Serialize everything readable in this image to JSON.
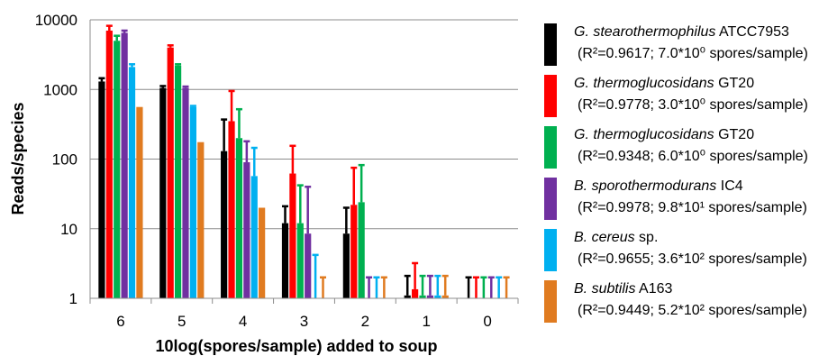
{
  "chart_data": {
    "type": "bar",
    "title": "",
    "xlabel": "10log(spores/sample) added to soup",
    "ylabel": "Reads/species",
    "y_scale": "log",
    "ylim": [
      1,
      10000
    ],
    "y_ticks": [
      "1",
      "10",
      "100",
      "1000",
      "10000"
    ],
    "grid": "horizontal major gridlines",
    "legend_position": "right",
    "categories": [
      "6",
      "5",
      "4",
      "3",
      "2",
      "1",
      "0"
    ],
    "series": [
      {
        "name": "G. stearothermophilus ATCC7953",
        "species": "G. stearothermophilus",
        "strain": "ATCC7953",
        "stats": "(R²=0.9617; 7.0*10⁰ spores/sample)",
        "color": "#000000",
        "values": [
          1300,
          1050,
          130,
          12,
          8.5,
          1.1,
          1.0
        ],
        "error_upper": [
          1450,
          1120,
          370,
          21,
          20,
          2.1,
          2.0
        ]
      },
      {
        "name": "G. thermoglucosidans GT20",
        "species": "G. thermoglucosidans",
        "strain": "GT20",
        "stats": "(R²=0.9778; 3.0*10⁰ spores/sample)",
        "color": "#ff0000",
        "values": [
          7000,
          4000,
          350,
          62,
          22,
          1.35,
          1.0
        ],
        "error_upper": [
          8200,
          4300,
          950,
          155,
          75,
          3.2,
          2.0
        ]
      },
      {
        "name": "G. thermoglucosidans GT20",
        "species": "G. thermoglucosidans",
        "strain": "GT20",
        "stats": "(R²=0.9348; 6.0*10⁰ spores/sample)",
        "color": "#00b050",
        "values": [
          5000,
          2200,
          200,
          12,
          24,
          1.1,
          1.0
        ],
        "error_upper": [
          5900,
          2300,
          520,
          42,
          82,
          2.1,
          2.0
        ]
      },
      {
        "name": "B. sporothermodurans IC4",
        "species": "B. sporothermodurans",
        "strain": "IC4",
        "stats": "(R²=0.9978; 9.8*10¹ spores/sample)",
        "color": "#7030a0",
        "values": [
          6500,
          1050,
          90,
          8.5,
          1.0,
          1.1,
          1.0
        ],
        "error_upper": [
          7000,
          1100,
          180,
          40,
          2.0,
          2.1,
          2.0
        ]
      },
      {
        "name": "B. cereus sp.",
        "species": "B. cereus",
        "strain": "sp.",
        "stats": "(R²=0.9655; 3.6*10² spores/sample)",
        "color": "#00b0f0",
        "values": [
          2100,
          560,
          57,
          1.0,
          1.0,
          1.1,
          1.0
        ],
        "error_upper": [
          2300,
          580,
          145,
          4.2,
          2.0,
          2.1,
          2.0
        ]
      },
      {
        "name": "B. subtilis A163",
        "species": "B. subtilis",
        "strain": "A163",
        "stats": "(R²=0.9449; 5.2*10² spores/sample)",
        "color": "#e07b20",
        "values": [
          560,
          175,
          20,
          1.0,
          1.0,
          1.1,
          1.0
        ],
        "error_upper": [
          560,
          175,
          20,
          2.0,
          2.0,
          2.1,
          2.0
        ]
      }
    ]
  }
}
